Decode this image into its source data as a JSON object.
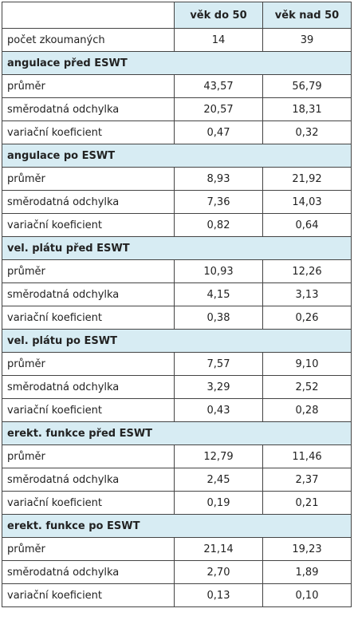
{
  "table": {
    "header": [
      "věk do 50",
      "věk nad 50"
    ],
    "count_row": [
      "počet zkoumaných",
      "14",
      "39"
    ],
    "sections": [
      {
        "title": "angulace před ESWT",
        "rows": [
          [
            "průměr",
            "43,57",
            "56,79"
          ],
          [
            "směrodatná odchylka",
            "20,57",
            "18,31"
          ],
          [
            "variační koeficient",
            "0,47",
            "0,32"
          ]
        ]
      },
      {
        "title": "angulace po ESWT",
        "rows": [
          [
            "průměr",
            "8,93",
            "21,92"
          ],
          [
            "směrodatná odchylka",
            "7,36",
            "14,03"
          ],
          [
            "variační koeficient",
            "0,82",
            "0,64"
          ]
        ]
      },
      {
        "title": "vel. plátu před ESWT",
        "rows": [
          [
            "průměr",
            "10,93",
            "12,26"
          ],
          [
            "směrodatná odchylka",
            "4,15",
            "3,13"
          ],
          [
            "variační koeficient",
            "0,38",
            "0,26"
          ]
        ]
      },
      {
        "title": "vel. plátu po ESWT",
        "rows": [
          [
            "průměr",
            "7,57",
            "9,10"
          ],
          [
            "směrodatná odchylka",
            "3,29",
            "2,52"
          ],
          [
            "variační koeficient",
            "0,43",
            "0,28"
          ]
        ]
      },
      {
        "title": "erekt. funkce před ESWT",
        "rows": [
          [
            "průměr",
            "12,79",
            "11,46"
          ],
          [
            "směrodatná odchylka",
            "2,45",
            "2,37"
          ],
          [
            "variační koeficient",
            "0,19",
            "0,21"
          ]
        ]
      },
      {
        "title": "erekt. funkce po ESWT",
        "rows": [
          [
            "průměr",
            "21,14",
            "19,23"
          ],
          [
            "směrodatná odchylka",
            "2,70",
            "1,89"
          ],
          [
            "variační koeficient",
            "0,13",
            "0,10"
          ]
        ]
      }
    ]
  }
}
